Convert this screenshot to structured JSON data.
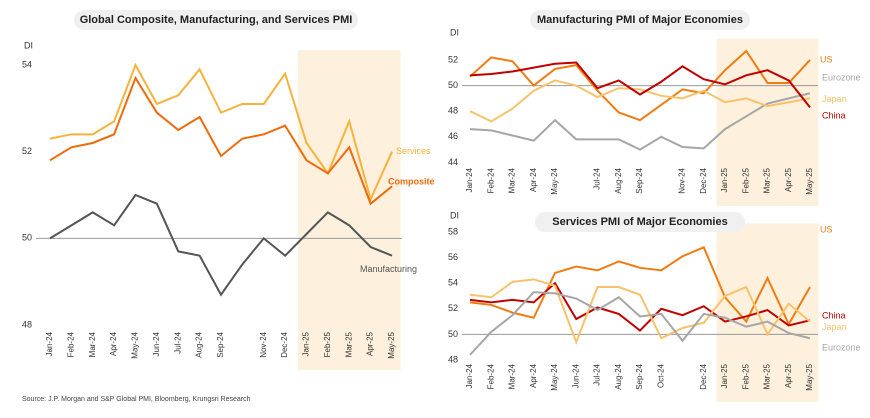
{
  "source": "Source: J.P. Morgan and S&P Global PMI, Bloomberg, Krungsri Research",
  "chart_data": [
    {
      "type": "line",
      "title": "Global Composite, Manufacturing, and Services PMI",
      "y_label": "DI",
      "categories": [
        "Jan-24",
        "Feb-24",
        "Mar-24",
        "Apr-24",
        "May-24",
        "Jun-24",
        "Jul-24",
        "Aug-24",
        "Sep-24",
        null,
        "Nov-24",
        "Dec-24",
        "Jan-25",
        "Feb-25",
        "Mar-25",
        "Apr-25",
        "May-25"
      ],
      "series": [
        {
          "name": "Services",
          "color": "#f7b23b",
          "values": [
            52.3,
            52.4,
            52.4,
            52.7,
            54.0,
            53.1,
            53.3,
            53.9,
            52.9,
            53.1,
            53.1,
            53.8,
            52.2,
            51.5,
            52.7,
            50.9,
            52.0
          ]
        },
        {
          "name": "Composite",
          "color": "#ee6a0c",
          "values": [
            51.8,
            52.1,
            52.2,
            52.4,
            53.7,
            52.9,
            52.5,
            52.8,
            51.9,
            52.3,
            52.4,
            52.6,
            51.8,
            51.5,
            52.1,
            50.8,
            51.2
          ]
        },
        {
          "name": "Manufacturing",
          "color": "#555555",
          "values": [
            50.0,
            50.3,
            50.6,
            50.3,
            51.0,
            50.8,
            49.7,
            49.6,
            48.7,
            49.4,
            50.0,
            49.6,
            50.1,
            50.6,
            50.3,
            49.8,
            49.6
          ]
        }
      ],
      "ylim": [
        47.5,
        54.2
      ],
      "yticks": [
        48,
        50,
        52,
        54
      ],
      "refline": 50,
      "highlight": [
        "Jan-25",
        "May-25"
      ]
    },
    {
      "type": "line",
      "title": "Manufacturing PMI of Major Economies",
      "y_label": "DI",
      "categories": [
        "Jan-24",
        "Feb-24",
        "Mar-24",
        "Apr-24",
        "May-24",
        null,
        "Jul-24",
        "Aug-24",
        "Sep-24",
        null,
        "Nov-24",
        "Dec-24",
        "Jan-25",
        "Feb-25",
        "Mar-25",
        "Apr-25",
        "May-25"
      ],
      "series": [
        {
          "name": "US",
          "color": "#f07c12",
          "values": [
            50.7,
            52.2,
            51.9,
            50.0,
            51.3,
            51.6,
            49.6,
            47.9,
            47.3,
            48.5,
            49.7,
            49.4,
            51.2,
            52.7,
            50.2,
            50.2,
            52.0
          ]
        },
        {
          "name": "Eurozone",
          "color": "#a6a6a6",
          "values": [
            46.6,
            46.5,
            46.1,
            45.7,
            47.3,
            45.8,
            45.8,
            45.8,
            45.0,
            46.0,
            45.2,
            45.1,
            46.6,
            47.6,
            48.6,
            49.0,
            49.4
          ]
        },
        {
          "name": "Japan",
          "color": "#f7c26b",
          "values": [
            48.0,
            47.2,
            48.2,
            49.6,
            50.4,
            50.0,
            49.1,
            49.8,
            49.7,
            49.2,
            49.0,
            49.6,
            48.7,
            49.0,
            48.4,
            48.7,
            49.0
          ]
        },
        {
          "name": "China",
          "color": "#c00000",
          "values": [
            50.8,
            50.9,
            51.1,
            51.4,
            51.7,
            51.8,
            49.8,
            50.4,
            49.3,
            50.3,
            51.5,
            50.5,
            50.1,
            50.8,
            51.2,
            50.4,
            48.3
          ]
        }
      ],
      "ylim": [
        43.5,
        53.2
      ],
      "yticks": [
        44,
        46,
        48,
        50,
        52
      ],
      "refline": 50,
      "highlight": [
        "Jan-25",
        "May-25"
      ]
    },
    {
      "type": "line",
      "title": "Services PMI of Major Economies",
      "y_label": "DI",
      "categories": [
        "Jan-24",
        "Feb-24",
        "Mar-24",
        "Apr-24",
        "May-24",
        "Jun-24",
        "Jul-24",
        "Aug-24",
        "Sep-24",
        "Oct-24",
        null,
        "Dec-24",
        "Jan-25",
        "Feb-25",
        "Mar-25",
        "Apr-25",
        "May-25"
      ],
      "series": [
        {
          "name": "US",
          "color": "#f07c12",
          "values": [
            52.5,
            52.3,
            51.7,
            51.3,
            54.8,
            55.3,
            55.0,
            55.7,
            55.2,
            55.0,
            56.1,
            56.8,
            52.9,
            51.0,
            54.4,
            50.8,
            53.7
          ]
        },
        {
          "name": "China",
          "color": "#c00000",
          "values": [
            52.7,
            52.5,
            52.7,
            52.5,
            54.0,
            51.2,
            52.1,
            51.6,
            50.3,
            52.0,
            51.5,
            52.2,
            51.0,
            51.4,
            51.9,
            50.7,
            51.1
          ]
        },
        {
          "name": "Japan",
          "color": "#f7c26b",
          "values": [
            53.1,
            52.9,
            54.1,
            54.3,
            53.8,
            49.4,
            53.7,
            53.7,
            53.1,
            49.7,
            50.5,
            50.9,
            53.0,
            53.7,
            50.0,
            52.4,
            51.0
          ]
        },
        {
          "name": "Eurozone",
          "color": "#a6a6a6",
          "values": [
            48.4,
            50.2,
            51.5,
            53.3,
            53.2,
            52.8,
            51.9,
            52.9,
            51.4,
            51.6,
            49.5,
            51.6,
            51.3,
            50.6,
            51.0,
            50.1,
            49.7
          ]
        }
      ],
      "ylim": [
        47.5,
        58.2
      ],
      "yticks": [
        48,
        50,
        52,
        54,
        56,
        58
      ],
      "refline": 50,
      "highlight": [
        "Jan-25",
        "May-25"
      ]
    }
  ]
}
